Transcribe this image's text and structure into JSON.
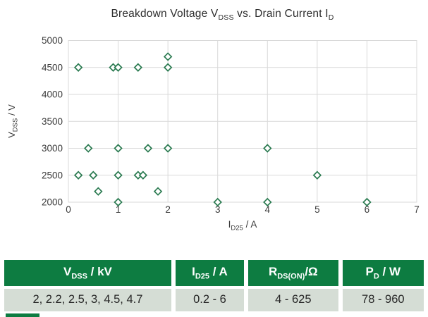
{
  "title_parts": [
    {
      "t": "Breakdown Voltage V"
    },
    {
      "t": "DSS",
      "sub": true
    },
    {
      "t": " vs. Drain Current I"
    },
    {
      "t": "D",
      "sub": true
    }
  ],
  "xlabel_parts": [
    {
      "t": "I"
    },
    {
      "t": "D25",
      "sub": true
    },
    {
      "t": " / A"
    }
  ],
  "ylabel_parts": [
    {
      "t": "V"
    },
    {
      "t": "DSS",
      "sub": true
    },
    {
      "t": " / V"
    }
  ],
  "chart_data": {
    "type": "scatter",
    "title": "Breakdown Voltage V_DSS vs. Drain Current I_D",
    "xlabel": "I_D25 / A",
    "ylabel": "V_DSS / V",
    "xlim": [
      0,
      7
    ],
    "ylim": [
      2000,
      5000
    ],
    "x_ticks": [
      0,
      1,
      2,
      3,
      4,
      5,
      6,
      7
    ],
    "y_ticks": [
      2000,
      2500,
      3000,
      3500,
      4000,
      4500,
      5000
    ],
    "grid": true,
    "legend": "none",
    "marker": "open-diamond",
    "points": [
      [
        0.2,
        4500
      ],
      [
        0.9,
        4500
      ],
      [
        1.0,
        4500
      ],
      [
        1.4,
        4500
      ],
      [
        2.0,
        4500
      ],
      [
        2.0,
        4700
      ],
      [
        0.4,
        3000
      ],
      [
        1.0,
        3000
      ],
      [
        1.6,
        3000
      ],
      [
        2.0,
        3000
      ],
      [
        4.0,
        3000
      ],
      [
        0.2,
        2500
      ],
      [
        0.5,
        2500
      ],
      [
        1.0,
        2500
      ],
      [
        1.4,
        2500
      ],
      [
        1.5,
        2500
      ],
      [
        5.0,
        2500
      ],
      [
        0.6,
        2200
      ],
      [
        1.8,
        2200
      ],
      [
        1.0,
        2000
      ],
      [
        3.0,
        2000
      ],
      [
        4.0,
        2000
      ],
      [
        6.0,
        2000
      ]
    ]
  },
  "table": {
    "columns": [
      {
        "header_parts": [
          {
            "t": "V"
          },
          {
            "t": "DSS",
            "sub": true
          },
          {
            "t": " / kV"
          }
        ],
        "value": "2, 2.2, 2.5, 3, 4.5, 4.7"
      },
      {
        "header_parts": [
          {
            "t": "I"
          },
          {
            "t": "D25",
            "sub": true
          },
          {
            "t": " / A"
          }
        ],
        "value": "0.2 - 6"
      },
      {
        "header_parts": [
          {
            "t": "R"
          },
          {
            "t": "DS(ON)",
            "sub": true
          },
          {
            "t": "/Ω"
          }
        ],
        "value": "4 - 625"
      },
      {
        "header_parts": [
          {
            "t": "P"
          },
          {
            "t": "D",
            "sub": true
          },
          {
            "t": " / W"
          }
        ],
        "value": "78 - 960"
      }
    ]
  },
  "colors": {
    "marker_green": "#2a7a50",
    "grid_gray": "#d9d9d9",
    "tick_text": "#3a3a3a",
    "table_header_bg": "#0d7c41",
    "table_header_text": "#ffffff",
    "table_row_bg": "#d5ddd5",
    "logo_green": "#0d7c41"
  }
}
